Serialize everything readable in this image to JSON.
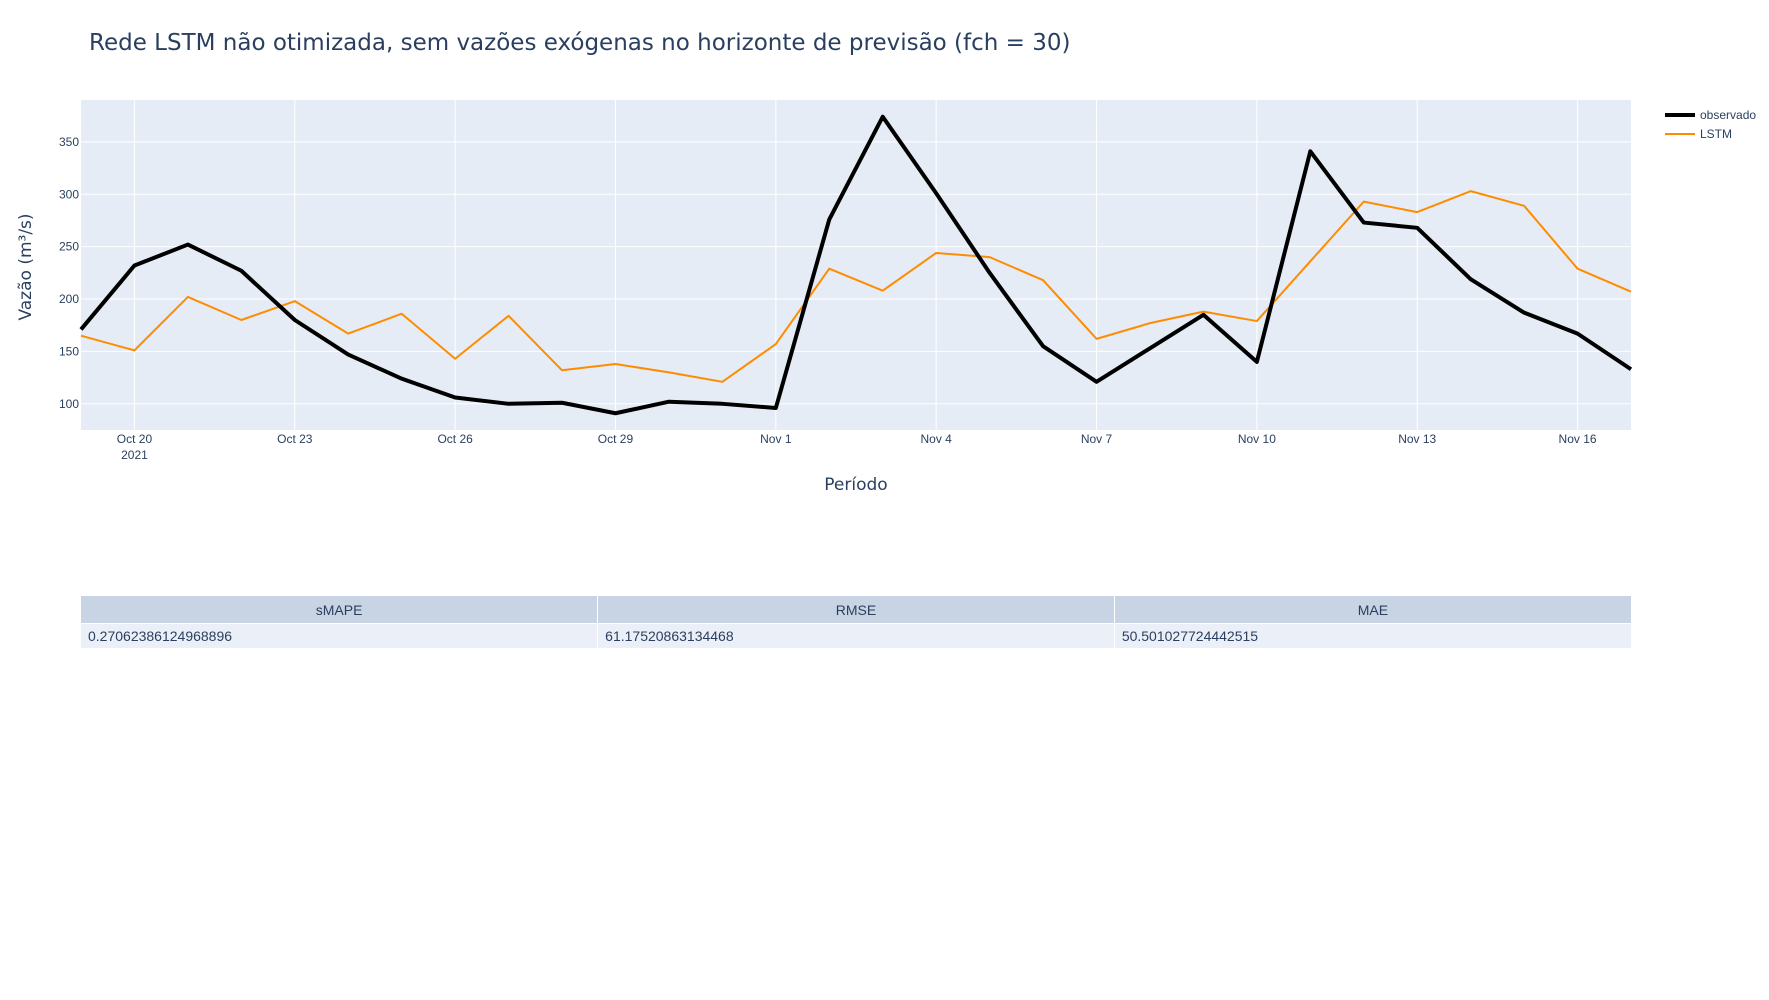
{
  "chart_data": {
    "type": "line",
    "title": "Rede LSTM não otimizada, sem vazões exógenas no horizonte de previsão (fch = 30)",
    "xlabel": "Período",
    "ylabel": "Vazão (m³/s)",
    "x": [
      "2021-10-19",
      "2021-10-20",
      "2021-10-21",
      "2021-10-22",
      "2021-10-23",
      "2021-10-24",
      "2021-10-25",
      "2021-10-26",
      "2021-10-27",
      "2021-10-28",
      "2021-10-29",
      "2021-10-30",
      "2021-10-31",
      "2021-11-01",
      "2021-11-02",
      "2021-11-03",
      "2021-11-04",
      "2021-11-05",
      "2021-11-06",
      "2021-11-07",
      "2021-11-08",
      "2021-11-09",
      "2021-11-10",
      "2021-11-11",
      "2021-11-12",
      "2021-11-13",
      "2021-11-14",
      "2021-11-15",
      "2021-11-16",
      "2021-11-17"
    ],
    "xlim": [
      "2021-10-19",
      "2021-11-17"
    ],
    "ylim": [
      75,
      390
    ],
    "x_ticks": [
      {
        "date": "2021-10-20",
        "label": "Oct 20",
        "sublabel": "2021"
      },
      {
        "date": "2021-10-23",
        "label": "Oct 23"
      },
      {
        "date": "2021-10-26",
        "label": "Oct 26"
      },
      {
        "date": "2021-10-29",
        "label": "Oct 29"
      },
      {
        "date": "2021-11-01",
        "label": "Nov 1"
      },
      {
        "date": "2021-11-04",
        "label": "Nov 4"
      },
      {
        "date": "2021-11-07",
        "label": "Nov 7"
      },
      {
        "date": "2021-11-10",
        "label": "Nov 10"
      },
      {
        "date": "2021-11-13",
        "label": "Nov 13"
      },
      {
        "date": "2021-11-16",
        "label": "Nov 16"
      }
    ],
    "y_ticks": [
      100,
      150,
      200,
      250,
      300,
      350
    ],
    "grid": true,
    "legend_position": "top-right",
    "series": [
      {
        "name": "observado",
        "color": "#000000",
        "values": [
          171,
          232,
          252,
          227,
          180,
          147,
          124,
          106,
          100,
          101,
          91,
          102,
          100,
          96,
          276,
          374,
          301,
          225,
          155,
          121,
          153,
          185,
          140,
          341,
          273,
          268,
          219,
          187,
          167,
          133
        ]
      },
      {
        "name": "LSTM",
        "color": "#ff8c00",
        "values": [
          165,
          151,
          202,
          180,
          198,
          167,
          186,
          143,
          184,
          132,
          138,
          130,
          121,
          157,
          229,
          208,
          244,
          240,
          218,
          162,
          177,
          188,
          179,
          236,
          293,
          283,
          303,
          289,
          229,
          207
        ]
      }
    ]
  },
  "metrics_table": {
    "headers": [
      "sMAPE",
      "RMSE",
      "MAE"
    ],
    "values": [
      "0.27062386124968896",
      "61.17520863134468",
      "50.501027724442515"
    ]
  },
  "colors": {
    "plot_bg": "#e5ecf6",
    "grid": "#ffffff",
    "text": "#2a3f5f",
    "header_bg": "#c8d4e3",
    "cell_bg": "#ebf0f8"
  }
}
